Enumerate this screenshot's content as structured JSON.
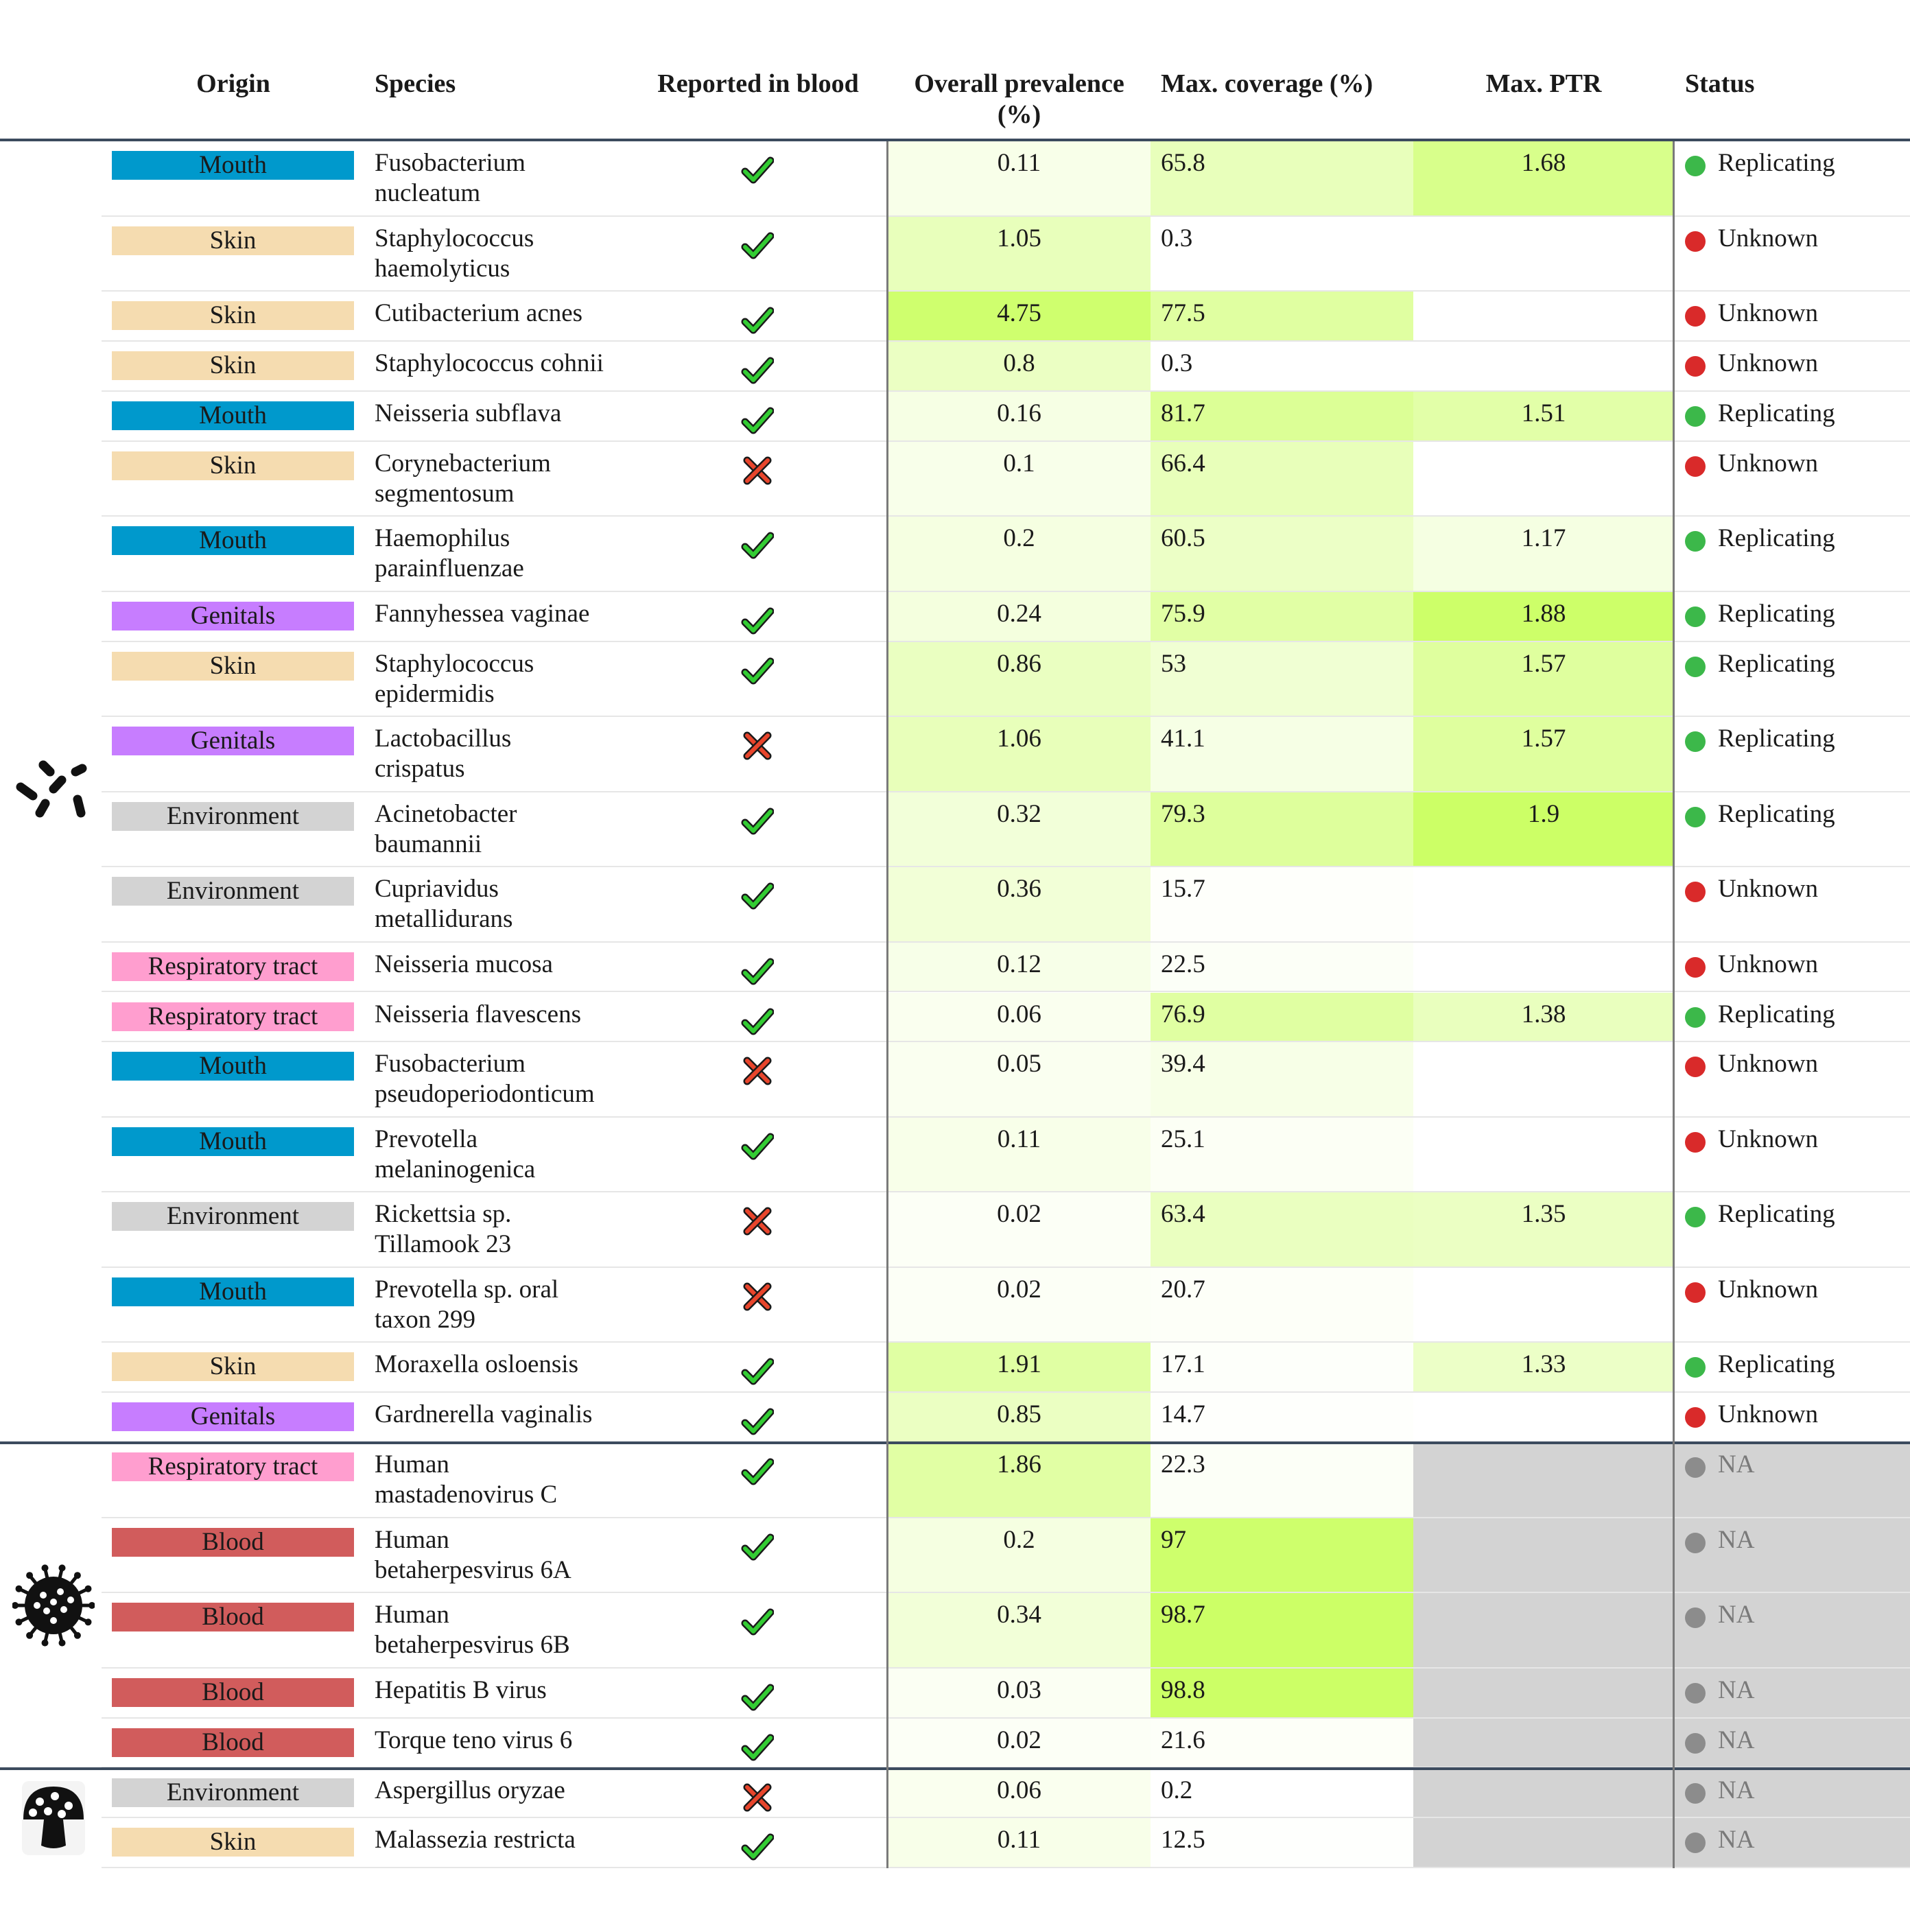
{
  "columns": {
    "origin": "Origin",
    "species": "Species",
    "reported": "Reported in blood",
    "prevalence_line1": "Overall prevalence",
    "prevalence_line2": "(%)",
    "coverage": "Max. coverage (%)",
    "ptr": "Max. PTR",
    "status": "Status"
  },
  "origin_colors": {
    "Mouth": "#0099cc",
    "Skin": "#f5dcb0",
    "Genitals": "#c77dff",
    "Environment": "#d3d3d3",
    "Respiratory tract": "#ff9ecf",
    "Blood": "#d15c5c"
  },
  "status_colors": {
    "Replicating": "#3cb84a",
    "Unknown": "#d92a2a",
    "NA": "#8c8c8c"
  },
  "groups": [
    {
      "icon": "bacteria-icon",
      "rows": [
        {
          "origin": "Mouth",
          "species": [
            "Fusobacterium",
            "nucleatum"
          ],
          "reported": true,
          "prevalence": "0.11",
          "coverage": "65.8",
          "ptr": "1.68",
          "status": "Replicating"
        },
        {
          "origin": "Skin",
          "species": [
            "Staphylococcus",
            "haemolyticus"
          ],
          "reported": true,
          "prevalence": "1.05",
          "coverage": "0.3",
          "ptr": "",
          "status": "Unknown"
        },
        {
          "origin": "Skin",
          "species": [
            "Cutibacterium acnes"
          ],
          "reported": true,
          "prevalence": "4.75",
          "coverage": "77.5",
          "ptr": "",
          "status": "Unknown"
        },
        {
          "origin": "Skin",
          "species": [
            "Staphylococcus cohnii"
          ],
          "reported": true,
          "prevalence": "0.8",
          "coverage": "0.3",
          "ptr": "",
          "status": "Unknown"
        },
        {
          "origin": "Mouth",
          "species": [
            "Neisseria subflava"
          ],
          "reported": true,
          "prevalence": "0.16",
          "coverage": "81.7",
          "ptr": "1.51",
          "status": "Replicating"
        },
        {
          "origin": "Skin",
          "species": [
            "Corynebacterium",
            "segmentosum"
          ],
          "reported": false,
          "prevalence": "0.1",
          "coverage": "66.4",
          "ptr": "",
          "status": "Unknown"
        },
        {
          "origin": "Mouth",
          "species": [
            "Haemophilus",
            "parainfluenzae"
          ],
          "reported": true,
          "prevalence": "0.2",
          "coverage": "60.5",
          "ptr": "1.17",
          "status": "Replicating"
        },
        {
          "origin": "Genitals",
          "species": [
            "Fannyhessea vaginae"
          ],
          "reported": true,
          "prevalence": "0.24",
          "coverage": "75.9",
          "ptr": "1.88",
          "status": "Replicating"
        },
        {
          "origin": "Skin",
          "species": [
            "Staphylococcus",
            "epidermidis"
          ],
          "reported": true,
          "prevalence": "0.86",
          "coverage": "53",
          "ptr": "1.57",
          "status": "Replicating"
        },
        {
          "origin": "Genitals",
          "species": [
            "Lactobacillus",
            "crispatus"
          ],
          "reported": false,
          "prevalence": "1.06",
          "coverage": "41.1",
          "ptr": "1.57",
          "status": "Replicating"
        },
        {
          "origin": "Environment",
          "species": [
            "Acinetobacter",
            "baumannii"
          ],
          "reported": true,
          "prevalence": "0.32",
          "coverage": "79.3",
          "ptr": "1.9",
          "status": "Replicating"
        },
        {
          "origin": "Environment",
          "species": [
            "Cupriavidus",
            "metallidurans"
          ],
          "reported": true,
          "prevalence": "0.36",
          "coverage": "15.7",
          "ptr": "",
          "status": "Unknown"
        },
        {
          "origin": "Respiratory tract",
          "species": [
            "Neisseria mucosa"
          ],
          "reported": true,
          "prevalence": "0.12",
          "coverage": "22.5",
          "ptr": "",
          "status": "Unknown"
        },
        {
          "origin": "Respiratory tract",
          "species": [
            "Neisseria flavescens"
          ],
          "reported": true,
          "prevalence": "0.06",
          "coverage": "76.9",
          "ptr": "1.38",
          "status": "Replicating"
        },
        {
          "origin": "Mouth",
          "species": [
            "Fusobacterium",
            "pseudoperiodonticum"
          ],
          "reported": false,
          "prevalence": "0.05",
          "coverage": "39.4",
          "ptr": "",
          "status": "Unknown"
        },
        {
          "origin": "Mouth",
          "species": [
            "Prevotella",
            "melaninogenica"
          ],
          "reported": true,
          "prevalence": "0.11",
          "coverage": "25.1",
          "ptr": "",
          "status": "Unknown"
        },
        {
          "origin": "Environment",
          "species": [
            "Rickettsia sp.",
            "Tillamook 23"
          ],
          "reported": false,
          "prevalence": "0.02",
          "coverage": "63.4",
          "ptr": "1.35",
          "status": "Replicating"
        },
        {
          "origin": "Mouth",
          "species": [
            "Prevotella sp. oral",
            "taxon 299"
          ],
          "reported": false,
          "prevalence": "0.02",
          "coverage": "20.7",
          "ptr": "",
          "status": "Unknown"
        },
        {
          "origin": "Skin",
          "species": [
            "Moraxella osloensis"
          ],
          "reported": true,
          "prevalence": "1.91",
          "coverage": "17.1",
          "ptr": "1.33",
          "status": "Replicating"
        },
        {
          "origin": "Genitals",
          "species": [
            "Gardnerella vaginalis"
          ],
          "reported": true,
          "prevalence": "0.85",
          "coverage": "14.7",
          "ptr": "",
          "status": "Unknown"
        }
      ]
    },
    {
      "icon": "virus-icon",
      "rows": [
        {
          "origin": "Respiratory tract",
          "species": [
            "Human",
            "mastadenovirus C"
          ],
          "reported": true,
          "prevalence": "1.86",
          "coverage": "22.3",
          "ptr": null,
          "status": "NA"
        },
        {
          "origin": "Blood",
          "species": [
            "Human",
            "betaherpesvirus 6A"
          ],
          "reported": true,
          "prevalence": "0.2",
          "coverage": "97",
          "ptr": null,
          "status": "NA"
        },
        {
          "origin": "Blood",
          "species": [
            "Human",
            "betaherpesvirus 6B"
          ],
          "reported": true,
          "prevalence": "0.34",
          "coverage": "98.7",
          "ptr": null,
          "status": "NA"
        },
        {
          "origin": "Blood",
          "species": [
            "Hepatitis B virus"
          ],
          "reported": true,
          "prevalence": "0.03",
          "coverage": "98.8",
          "ptr": null,
          "status": "NA"
        },
        {
          "origin": "Blood",
          "species": [
            "Torque teno virus 6"
          ],
          "reported": true,
          "prevalence": "0.02",
          "coverage": "21.6",
          "ptr": null,
          "status": "NA"
        }
      ]
    },
    {
      "icon": "mushroom-icon",
      "rows": [
        {
          "origin": "Environment",
          "species": [
            "Aspergillus oryzae"
          ],
          "reported": false,
          "prevalence": "0.06",
          "coverage": "0.2",
          "ptr": null,
          "status": "NA"
        },
        {
          "origin": "Skin",
          "species": [
            "Malassezia restricta"
          ],
          "reported": true,
          "prevalence": "0.11",
          "coverage": "12.5",
          "ptr": null,
          "status": "NA"
        }
      ]
    }
  ]
}
